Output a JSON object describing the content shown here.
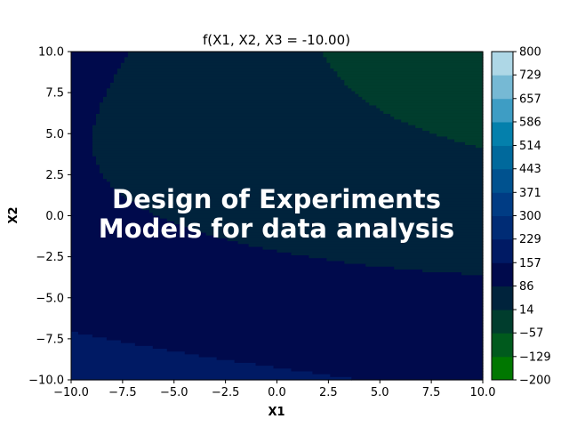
{
  "chart_data": {
    "type": "contour",
    "title": "f(X1, X2, X3 = -10.00)",
    "xlabel": "X1",
    "ylabel": "X2",
    "xlim": [
      -10,
      10
    ],
    "ylim": [
      -10,
      10
    ],
    "x_ticks": [
      "−10.0",
      "−7.5",
      "−5.0",
      "−2.5",
      "0.0",
      "2.5",
      "5.0",
      "7.5",
      "10.0"
    ],
    "y_ticks": [
      "−10.0",
      "−7.5",
      "−5.0",
      "−2.5",
      "0.0",
      "2.5",
      "5.0",
      "7.5",
      "10.0"
    ],
    "colorbar": {
      "levels": [
        -200,
        -129,
        -57,
        14,
        86,
        157,
        229,
        300,
        371,
        443,
        514,
        586,
        657,
        729,
        800
      ],
      "labels": [
        "−200",
        "−129",
        "−57",
        "14",
        "86",
        "157",
        "229",
        "300",
        "371",
        "443",
        "514",
        "586",
        "657",
        "729",
        "800"
      ],
      "colors": [
        "#007700",
        "#005a1d",
        "#003d2d",
        "#00233c",
        "#000a4c",
        "#001a64",
        "#002c75",
        "#003c84",
        "#00528f",
        "#00699c",
        "#0480ac",
        "#3e9dc4",
        "#76b9d4",
        "#aed7e6",
        "#ffffff"
      ]
    },
    "grid": false,
    "annotation": [
      "Design of Experiments",
      "Models for data analysis"
    ]
  }
}
